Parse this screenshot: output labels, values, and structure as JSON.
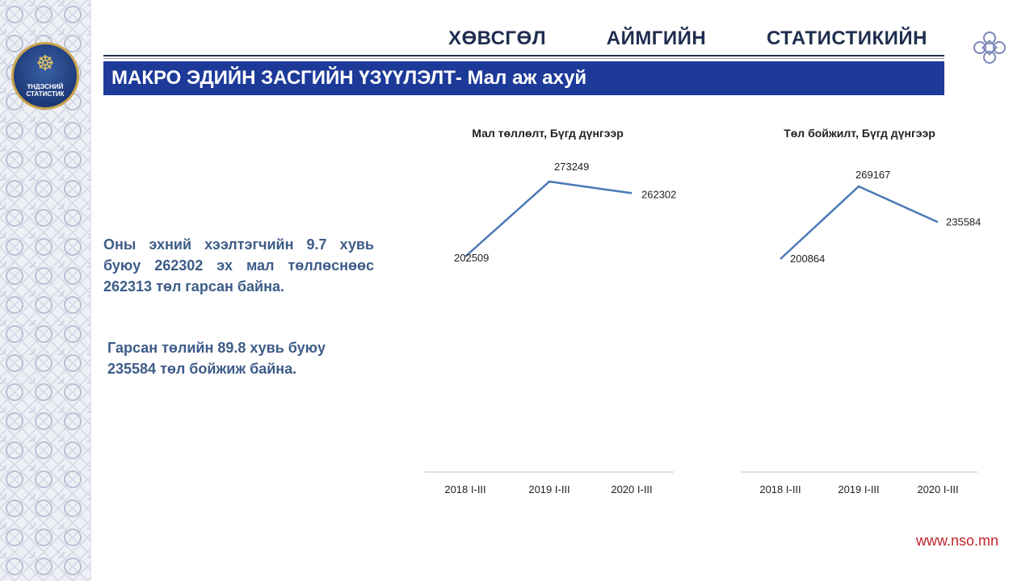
{
  "header": {
    "title_words": [
      "ХӨВСГӨЛ",
      "АЙМГИЙН",
      "СТАТИСТИКИЙН"
    ]
  },
  "banner": {
    "title": "МАКРО ЭДИЙН ЗАСГИЙН ҮЗҮҮЛЭЛТ- Мал аж ахуй"
  },
  "logo": {
    "text_line1": "ҮНДЭСНИЙ",
    "text_line2": "СТАТИСТИК",
    "icon": "soyombo-icon"
  },
  "body": {
    "paragraph1": "Оны эхний хээлтэгчийн 9.7 хувь буюу 262302 эх мал төллөснөөс 262313 төл гарсан байна.",
    "paragraph2": "Гарсан төлийн 89.8 хувь буюу 235584 төл бойжиж байна."
  },
  "footer": {
    "url": "www.nso.mn"
  },
  "colors": {
    "banner": "#1d3a99",
    "line": "#4a7ab5",
    "url": "#c0242b",
    "text": "#3e5c88"
  },
  "chart_data": [
    {
      "type": "line",
      "title": "Мал төллөлт, Бүгд дүнгээр",
      "categories": [
        "2018 I-III",
        "2019 I-III",
        "2020 I-III"
      ],
      "values": [
        202509,
        273249,
        262302
      ],
      "data_labels": [
        "202509",
        "273249",
        "262302"
      ],
      "grid": false,
      "legend": "none"
    },
    {
      "type": "line",
      "title": "Төл бойжилт, Бүгд дүнгээр",
      "categories": [
        "2018 I-III",
        "2019 I-III",
        "2020 I-III"
      ],
      "values": [
        200864,
        269167,
        235584
      ],
      "data_labels": [
        "200864",
        "269167",
        "235584"
      ],
      "grid": false,
      "legend": "none"
    }
  ]
}
